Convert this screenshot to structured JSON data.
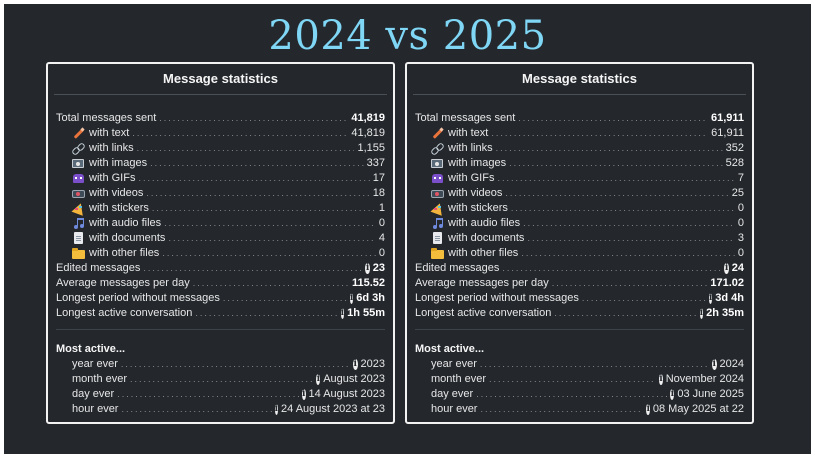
{
  "title": "2024 vs 2025",
  "panels": [
    {
      "heading": "Message statistics",
      "total": {
        "label": "Total messages sent",
        "value": "41,819"
      },
      "types": [
        {
          "label": "with text",
          "value": "41,819",
          "icon": "pencil-icon"
        },
        {
          "label": "with links",
          "value": "1,155",
          "icon": "link-icon"
        },
        {
          "label": "with images",
          "value": "337",
          "icon": "image-icon"
        },
        {
          "label": "with GIFs",
          "value": "17",
          "icon": "gif-icon"
        },
        {
          "label": "with videos",
          "value": "18",
          "icon": "video-icon"
        },
        {
          "label": "with stickers",
          "value": "1",
          "icon": "sticker-icon"
        },
        {
          "label": "with audio files",
          "value": "0",
          "icon": "music-note-icon"
        },
        {
          "label": "with documents",
          "value": "4",
          "icon": "document-icon"
        },
        {
          "label": "with other files",
          "value": "0",
          "icon": "folder-icon"
        }
      ],
      "edited": {
        "label": "Edited messages",
        "value": "23"
      },
      "avg": {
        "label": "Average messages per day",
        "value": "115.52"
      },
      "longest_gap": {
        "label": "Longest period without messages",
        "value": "6d 3h"
      },
      "longest_conv": {
        "label": "Longest active conversation",
        "value": "1h 55m"
      },
      "most_active": {
        "heading": "Most active...",
        "year": {
          "label": "year ever",
          "value": "2023"
        },
        "month": {
          "label": "month ever",
          "value": "August 2023"
        },
        "day": {
          "label": "day ever",
          "value": "14 August 2023"
        },
        "hour": {
          "label": "hour ever",
          "value": "24 August 2023 at 23"
        }
      }
    },
    {
      "heading": "Message statistics",
      "total": {
        "label": "Total messages sent",
        "value": "61,911"
      },
      "types": [
        {
          "label": "with text",
          "value": "61,911",
          "icon": "pencil-icon"
        },
        {
          "label": "with links",
          "value": "352",
          "icon": "link-icon"
        },
        {
          "label": "with images",
          "value": "528",
          "icon": "image-icon"
        },
        {
          "label": "with GIFs",
          "value": "7",
          "icon": "gif-icon"
        },
        {
          "label": "with videos",
          "value": "25",
          "icon": "video-icon"
        },
        {
          "label": "with stickers",
          "value": "0",
          "icon": "sticker-icon"
        },
        {
          "label": "with audio files",
          "value": "0",
          "icon": "music-note-icon"
        },
        {
          "label": "with documents",
          "value": "3",
          "icon": "document-icon"
        },
        {
          "label": "with other files",
          "value": "0",
          "icon": "folder-icon"
        }
      ],
      "edited": {
        "label": "Edited messages",
        "value": "24"
      },
      "avg": {
        "label": "Average messages per day",
        "value": "171.02"
      },
      "longest_gap": {
        "label": "Longest period without messages",
        "value": "3d 4h"
      },
      "longest_conv": {
        "label": "Longest active conversation",
        "value": "2h 35m"
      },
      "most_active": {
        "heading": "Most active...",
        "year": {
          "label": "year ever",
          "value": "2024"
        },
        "month": {
          "label": "month ever",
          "value": "November 2024"
        },
        "day": {
          "label": "day ever",
          "value": "03 June 2025"
        },
        "hour": {
          "label": "hour ever",
          "value": "08 May 2025 at 22"
        }
      }
    }
  ],
  "colors": {
    "background": "#24282d",
    "title": "#7fd6f5",
    "panel_border": "#f2f2f2"
  }
}
